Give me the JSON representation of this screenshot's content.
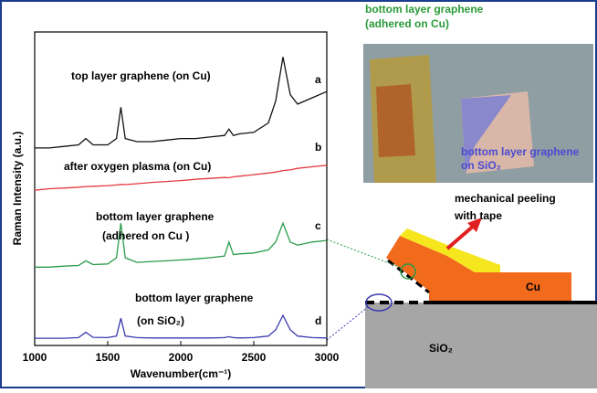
{
  "chart_data": {
    "type": "line",
    "xlabel": "Wavenumber(cm⁻¹)",
    "ylabel": "Raman Intensity (a.u.)",
    "x": [
      1000,
      1100,
      1200,
      1300,
      1350,
      1400,
      1500,
      1560,
      1590,
      1620,
      1700,
      1800,
      1900,
      2000,
      2100,
      2200,
      2300,
      2330,
      2360,
      2400,
      2500,
      2600,
      2650,
      2700,
      2750,
      2800,
      2900,
      3000
    ],
    "xlim": [
      1000,
      3000
    ],
    "xticks": [
      1000,
      1500,
      2000,
      2500,
      3000
    ],
    "ylim": [
      0,
      100
    ],
    "series": [
      {
        "name": "a",
        "color": "#111111",
        "values": [
          63,
          63,
          63.5,
          64,
          66,
          64,
          64,
          66,
          76,
          66,
          65,
          65,
          65.5,
          66,
          66,
          66.5,
          67,
          69,
          67,
          67.5,
          68,
          71,
          78,
          92,
          80,
          77,
          79,
          81
        ]
      },
      {
        "name": "b",
        "color": "#e33a3f",
        "values": [
          49.5,
          50,
          50.2,
          50.5,
          50.7,
          50.8,
          51,
          51.2,
          51.4,
          51.3,
          51.6,
          52,
          52.3,
          52.6,
          53,
          53.3,
          53.6,
          53.5,
          53.8,
          54,
          54.5,
          55,
          55.3,
          55.8,
          56,
          56.5,
          57,
          57.5
        ]
      },
      {
        "name": "c",
        "color": "#2a9a4a",
        "values": [
          25,
          25,
          25.3,
          25.5,
          27,
          25.8,
          26,
          28,
          39,
          28,
          26.5,
          26.8,
          27,
          27.3,
          27.6,
          28,
          28.5,
          33,
          29,
          29.2,
          29.5,
          30.5,
          33,
          39,
          33,
          32,
          33,
          33.5
        ]
      },
      {
        "name": "d",
        "color": "#3a3ab0",
        "values": [
          2.3,
          2.3,
          2.3,
          2.5,
          4.2,
          2.6,
          2.5,
          3,
          8.7,
          3,
          2.5,
          2.4,
          2.4,
          2.4,
          2.4,
          2.4,
          2.5,
          2.8,
          2.5,
          2.4,
          2.5,
          3,
          5,
          9.6,
          5,
          3,
          2.5,
          2.4
        ]
      }
    ],
    "annotations": [
      "top layer graphene (on Cu)",
      "after oxygen plasma (on Cu)",
      "bottom layer graphene",
      "(adhered on Cu )",
      "bottom layer graphene",
      "(on SiO₂)"
    ]
  },
  "schematic": {
    "photo_cu_label": [
      "bottom layer graphene",
      "(adhered on Cu)"
    ],
    "photo_sio2_label": [
      "bottom layer graphene",
      "on SiO₂"
    ],
    "peel_label": [
      "mechanical peeling",
      "with tape"
    ],
    "cu": "Cu",
    "sio2": "SiO₂"
  }
}
